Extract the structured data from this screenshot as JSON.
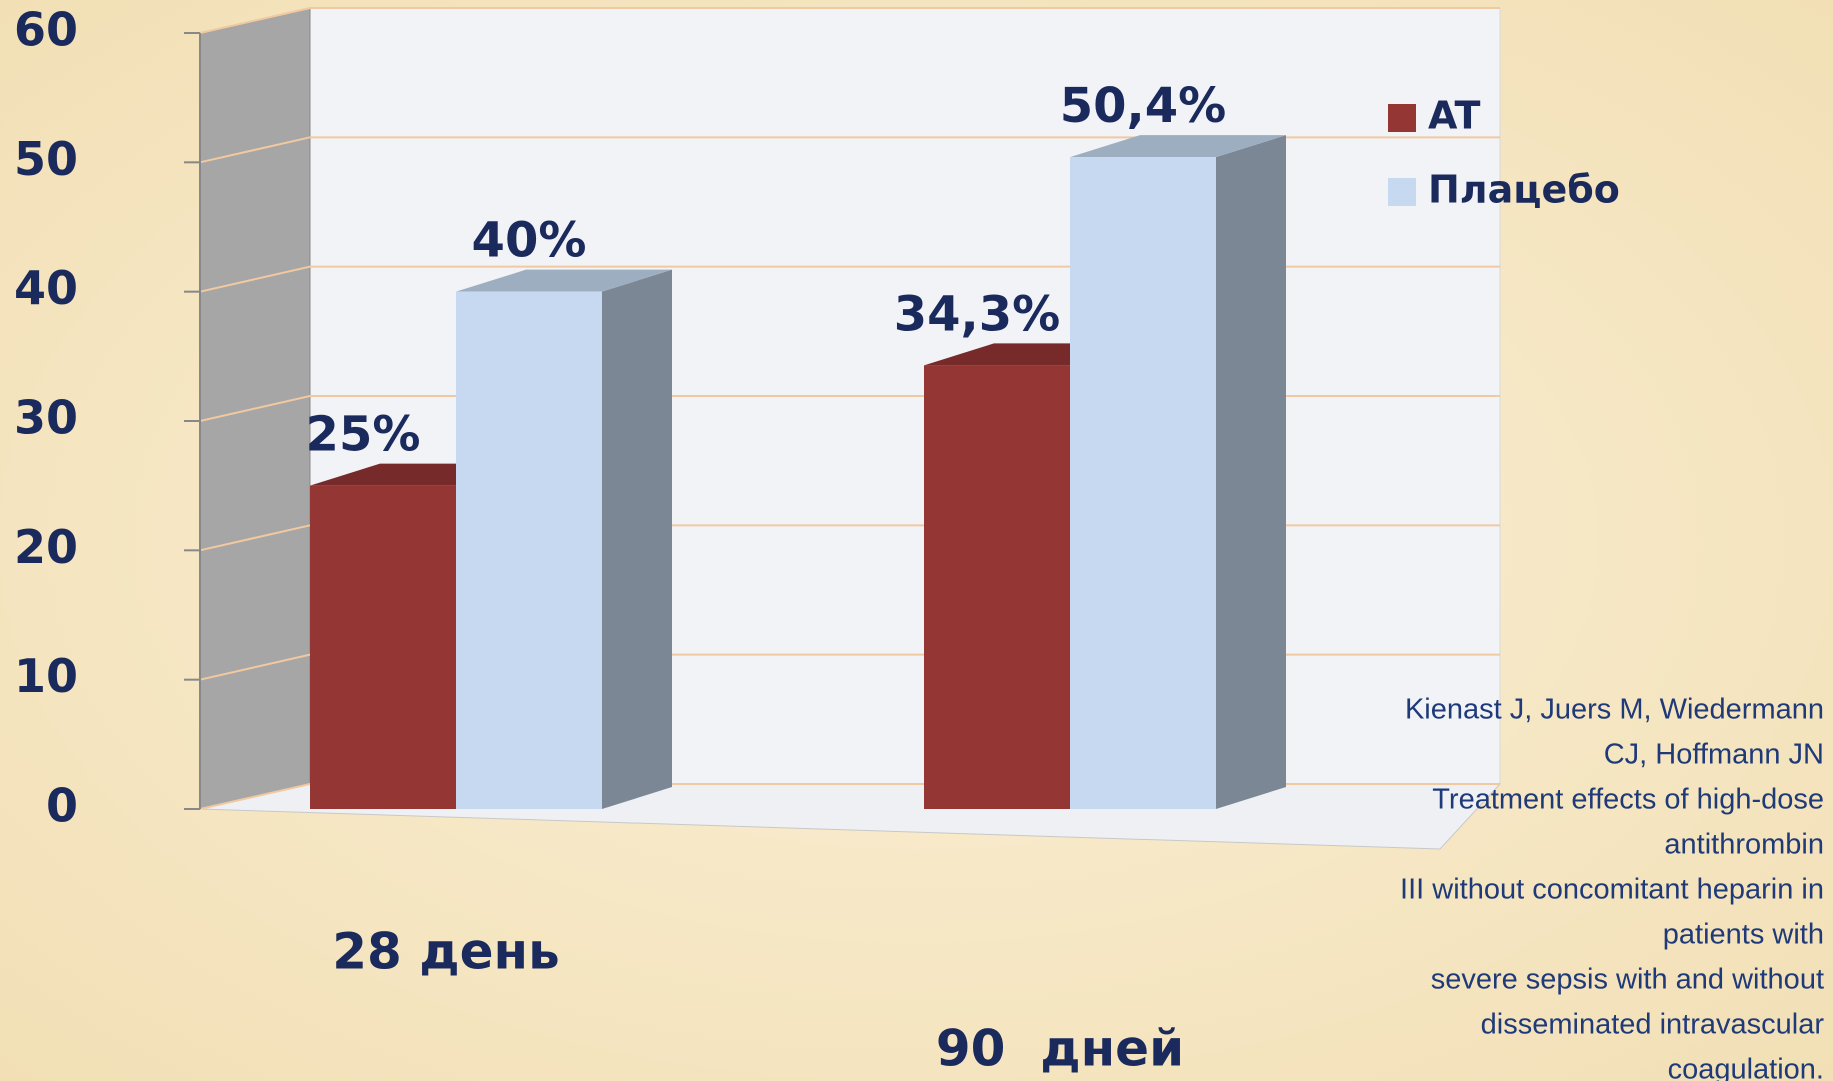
{
  "chart_data": {
    "type": "bar3d",
    "categories": [
      "28 день",
      "90  дней"
    ],
    "series": [
      {
        "name": "AT",
        "color": "#943634",
        "values": [
          25,
          34.3
        ],
        "value_labels": [
          "25%",
          "34,3%"
        ]
      },
      {
        "name": "Плацебо",
        "color": "#c6d9f1",
        "values": [
          40,
          50.4
        ],
        "value_labels": [
          "40%",
          "50,4%"
        ]
      }
    ],
    "ylim": [
      0,
      60
    ],
    "yticks": [
      0,
      10,
      20,
      30,
      40,
      50,
      60
    ],
    "grid": true,
    "legend": "top-right",
    "annotation": [
      "Kienast J, Juers M, Wiedermann",
      "CJ, Hoffmann JN",
      "Treatment effects of high-dose",
      "antithrombin",
      "III without concomitant heparin in",
      "patients with",
      "severe sepsis with and without",
      "disseminated intravascular",
      "coagulation."
    ]
  }
}
